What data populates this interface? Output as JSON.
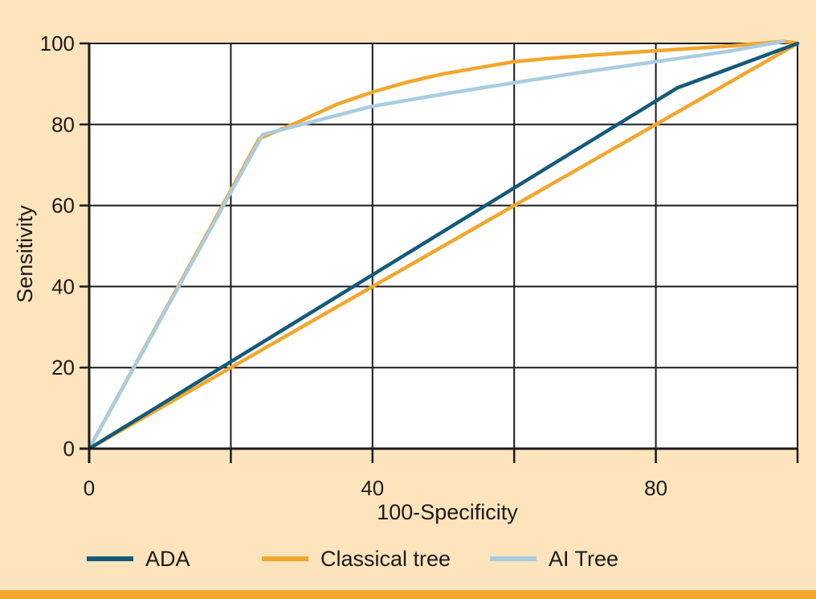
{
  "chart_data": {
    "type": "line",
    "title": "",
    "xlabel": "100-Specificity",
    "ylabel": "Sensitivity",
    "xlim": [
      0,
      100
    ],
    "ylim": [
      0,
      100
    ],
    "x_ticks": [
      0,
      20,
      40,
      60,
      80,
      100
    ],
    "x_tick_labels": [
      "0",
      "",
      "40",
      "",
      "80",
      ""
    ],
    "y_ticks": [
      0,
      20,
      40,
      60,
      80,
      100
    ],
    "y_tick_labels": [
      "0",
      "20",
      "40",
      "60",
      "80",
      "100"
    ],
    "grid": true,
    "legend_position": "bottom",
    "series": [
      {
        "name": "ADA",
        "color": "#145a7a",
        "points": [
          [
            0,
            0
          ],
          [
            83,
            89
          ],
          [
            100,
            100
          ]
        ]
      },
      {
        "name": "Classical tree",
        "color": "#f2a62b",
        "points": [
          [
            0,
            0
          ],
          [
            24,
            76.5
          ],
          [
            30,
            81
          ],
          [
            35,
            85
          ],
          [
            40,
            88
          ],
          [
            45,
            90.5
          ],
          [
            50,
            92.5
          ],
          [
            55,
            94
          ],
          [
            60,
            95.5
          ],
          [
            65,
            96.3
          ],
          [
            70,
            97
          ],
          [
            80,
            98.2
          ],
          [
            90,
            99.3
          ],
          [
            98,
            100.5
          ],
          [
            100,
            100
          ]
        ],
        "secondary_points": [
          [
            0,
            0
          ],
          [
            100,
            100
          ]
        ]
      },
      {
        "name": "AI Tree",
        "color": "#a9cce0",
        "points": [
          [
            0,
            0
          ],
          [
            24.5,
            77.5
          ],
          [
            30,
            80
          ],
          [
            40,
            84.5
          ],
          [
            50,
            87.5
          ],
          [
            60,
            90.3
          ],
          [
            70,
            93
          ],
          [
            80,
            95.5
          ],
          [
            90,
            98
          ],
          [
            98,
            100.5
          ]
        ]
      }
    ]
  },
  "colors": {
    "background": "#fde4bd",
    "plot_background": "#ffffff",
    "bottom_bar": "#f2a62b"
  }
}
